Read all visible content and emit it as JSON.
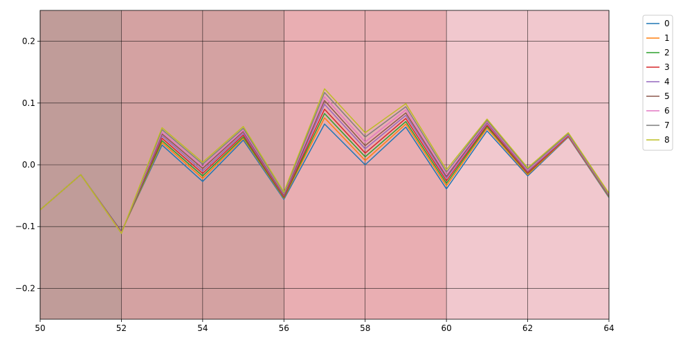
{
  "chart_data": {
    "type": "line",
    "title": "",
    "xlabel": "",
    "ylabel": "",
    "xlim": [
      50,
      64
    ],
    "ylim": [
      -0.25,
      0.25
    ],
    "x_ticks": [
      50,
      52,
      54,
      56,
      58,
      60,
      62,
      64
    ],
    "y_ticks": [
      -0.2,
      -0.1,
      0.0,
      0.1,
      0.2
    ],
    "x_tick_labels": [
      "50",
      "52",
      "54",
      "56",
      "58",
      "60",
      "62",
      "64"
    ],
    "y_tick_labels": [
      "−0.2",
      "−0.1",
      "0.0",
      "0.1",
      "0.2"
    ],
    "grid": "on",
    "legend_position": "outside top-right",
    "background_bands": [
      {
        "from": 50,
        "to": 52,
        "color": "#c09c99"
      },
      {
        "from": 52,
        "to": 56,
        "color": "#d4a2a2"
      },
      {
        "from": 56,
        "to": 60,
        "color": "#e9aeb2"
      },
      {
        "from": 60,
        "to": 64,
        "color": "#f1c8ce"
      }
    ],
    "x": [
      50,
      51,
      52,
      53,
      54,
      55,
      56,
      57,
      58,
      59,
      60,
      61,
      62,
      63,
      64
    ],
    "series": [
      {
        "name": "0",
        "color": "#1f77b4",
        "values": [
          -0.073,
          -0.016,
          -0.108,
          0.032,
          -0.027,
          0.04,
          -0.056,
          0.066,
          0.0,
          0.061,
          -0.039,
          0.055,
          -0.018,
          0.045,
          -0.053
        ]
      },
      {
        "name": "1",
        "color": "#ff7f0e",
        "values": [
          -0.073,
          -0.016,
          -0.109,
          0.036,
          -0.022,
          0.043,
          -0.054,
          0.076,
          0.007,
          0.066,
          -0.034,
          0.059,
          -0.016,
          0.046,
          -0.052
        ]
      },
      {
        "name": "2",
        "color": "#2ca02c",
        "values": [
          -0.073,
          -0.016,
          -0.109,
          0.039,
          -0.018,
          0.045,
          -0.053,
          0.083,
          0.013,
          0.07,
          -0.03,
          0.062,
          -0.014,
          0.047,
          -0.051
        ]
      },
      {
        "name": "3",
        "color": "#d62728",
        "values": [
          -0.073,
          -0.016,
          -0.109,
          0.043,
          -0.014,
          0.048,
          -0.052,
          0.09,
          0.019,
          0.075,
          -0.026,
          0.064,
          -0.013,
          0.047,
          -0.05
        ]
      },
      {
        "name": "4",
        "color": "#9467bd",
        "values": [
          -0.073,
          -0.016,
          -0.11,
          0.047,
          -0.01,
          0.051,
          -0.05,
          0.098,
          0.026,
          0.08,
          -0.022,
          0.067,
          -0.011,
          0.048,
          -0.05
        ]
      },
      {
        "name": "5",
        "color": "#8c564b",
        "values": [
          -0.073,
          -0.016,
          -0.11,
          0.05,
          -0.006,
          0.054,
          -0.049,
          0.104,
          0.031,
          0.084,
          -0.019,
          0.069,
          -0.01,
          0.049,
          -0.049
        ]
      },
      {
        "name": "6",
        "color": "#e377c2",
        "values": [
          -0.073,
          -0.016,
          -0.11,
          0.053,
          -0.003,
          0.056,
          -0.047,
          0.11,
          0.037,
          0.089,
          -0.016,
          0.07,
          -0.009,
          0.049,
          -0.048
        ]
      },
      {
        "name": "7",
        "color": "#7f7f7f",
        "values": [
          -0.073,
          -0.016,
          -0.111,
          0.057,
          0.001,
          0.059,
          -0.046,
          0.117,
          0.045,
          0.094,
          -0.012,
          0.072,
          -0.007,
          0.05,
          -0.047
        ]
      },
      {
        "name": "8",
        "color": "#bcbd22",
        "values": [
          -0.073,
          -0.016,
          -0.111,
          0.06,
          0.004,
          0.062,
          -0.044,
          0.123,
          0.052,
          0.099,
          -0.008,
          0.074,
          -0.005,
          0.052,
          -0.046
        ]
      }
    ]
  }
}
